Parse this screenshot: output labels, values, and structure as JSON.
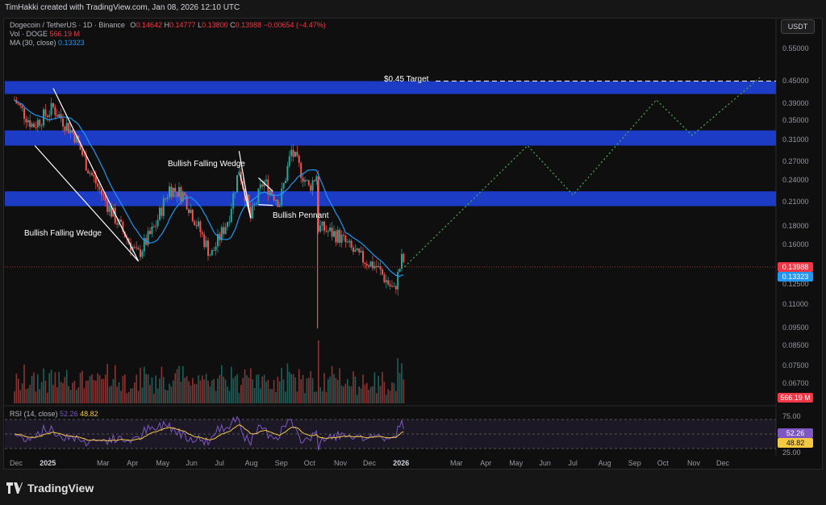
{
  "credit": "TimHakki created with TradingView.com, Jan 08, 2026 12:10 UTC",
  "legend": {
    "symbol": "Dogecoin / TetherUS · 1D · Binance",
    "ohlc": {
      "O": "0.14642",
      "H": "0.14777",
      "L": "0.13800",
      "C": "0.13988",
      "change": "−0.00654 (−4.47%)"
    },
    "ohlc_labels": {
      "O": "O",
      "H": "H",
      "L": "L",
      "C": "C"
    },
    "vol_label": "Vol · DOGE",
    "vol_value": "566.19 M",
    "ma_label": "MA (30, close)",
    "ma_value": "0.13323"
  },
  "currency_button": "USDT",
  "price_axis": [
    "0.55000",
    "0.45000",
    "0.39000",
    "0.35000",
    "0.31000",
    "0.27000",
    "0.24000",
    "0.21000",
    "0.18000",
    "0.16000",
    "0.12500",
    "0.11000",
    "0.09500",
    "0.08500",
    "0.07500",
    "0.06700"
  ],
  "badges": {
    "last_price": "0.13988",
    "ma": "0.13323",
    "volume": "566.19 M",
    "rsi1": "52.26",
    "rsi2": "48.82"
  },
  "rsi_axis": [
    "75.00",
    "25.00"
  ],
  "rsi_legend": {
    "label": "RSI (14, close)",
    "v1": "52.26",
    "v2": "48.82"
  },
  "time_axis": [
    "Dec",
    "2025",
    "Mar",
    "Apr",
    "May",
    "Jun",
    "Jul",
    "Aug",
    "Sep",
    "Oct",
    "Nov",
    "Dec",
    "2026",
    "Mar",
    "Apr",
    "May",
    "Jun",
    "Jul",
    "Aug",
    "Sep",
    "Oct",
    "Nov",
    "Dec"
  ],
  "annotations": {
    "target": "$0.45 Target",
    "wedge1": "Bullish Falling Wedge",
    "wedge2": "Bullish Falling Wedge",
    "pennant": "Bullish Pennant"
  },
  "brand": "TradingView",
  "colors": {
    "up": "#26a69a",
    "down": "#ef5350",
    "zone": "#1e3fd0",
    "ma": "#2196f3",
    "projection": "#4caf50",
    "rsi": "#7e57c2",
    "rsi_ma": "#f5c842",
    "bg": "#0f0f0f"
  },
  "chart_data": {
    "type": "candlestick",
    "title": "Dogecoin / TetherUS · 1D · Binance",
    "y_scale": "log",
    "ylim": [
      0.06,
      0.6
    ],
    "x": [
      "2024-12",
      "2025-01",
      "2025-02",
      "2025-03",
      "2025-04",
      "2025-05",
      "2025-06",
      "2025-07",
      "2025-08",
      "2025-09",
      "2025-10",
      "2025-11",
      "2025-12",
      "2026-01"
    ],
    "series": [
      {
        "name": "Close",
        "values": [
          0.4,
          0.36,
          0.25,
          0.19,
          0.16,
          0.23,
          0.17,
          0.22,
          0.22,
          0.24,
          0.19,
          0.15,
          0.13,
          0.14
        ]
      },
      {
        "name": "MA (30, close)",
        "values": [
          0.38,
          0.37,
          0.29,
          0.21,
          0.17,
          0.2,
          0.19,
          0.2,
          0.22,
          0.24,
          0.21,
          0.16,
          0.14,
          0.133
        ]
      }
    ],
    "zones": [
      [
        0.415,
        0.45
      ],
      [
        0.3,
        0.33
      ],
      [
        0.205,
        0.225
      ]
    ],
    "projection": [
      {
        "x": "2026-01-08",
        "y": 0.14
      },
      {
        "x": "2026-05-15",
        "y": 0.3
      },
      {
        "x": "2026-07-01",
        "y": 0.22
      },
      {
        "x": "2026-09-25",
        "y": 0.4
      },
      {
        "x": "2026-11-01",
        "y": 0.32
      },
      {
        "x": "2027-01-10",
        "y": 0.46
      }
    ],
    "target_level": 0.45,
    "rsi": {
      "ylim": [
        25,
        75
      ],
      "last": 52.26,
      "ma_last": 48.82
    }
  }
}
